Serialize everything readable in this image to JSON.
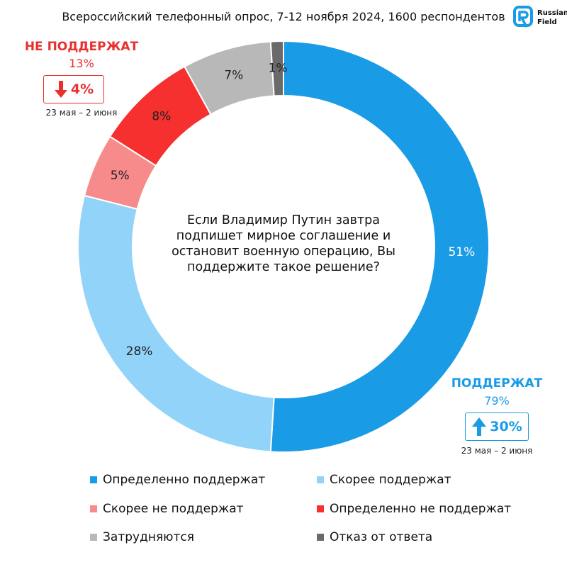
{
  "header": {
    "title": "Всероссийский телефонный опрос, 7-12 ноября 2024, 1600 респондентов",
    "logo_text": "Russian\nField"
  },
  "chart_data": {
    "type": "pie",
    "donut": true,
    "question": "Если Владимир Путин завтра подпишет мирное соглашение и остановит военную операцию, Вы поддержите такое решение?",
    "slices": [
      {
        "label": "Определенно поддержат",
        "value": 51,
        "display": "51%",
        "color": "#1a9be6"
      },
      {
        "label": "Скорее поддержат",
        "value": 28,
        "display": "28%",
        "color": "#91d3f9"
      },
      {
        "label": "Скорее не поддержат",
        "value": 5,
        "display": "5%",
        "color": "#f78a8a"
      },
      {
        "label": "Определенно не поддержат",
        "value": 8,
        "display": "8%",
        "color": "#f5302f"
      },
      {
        "label": "Затрудняются",
        "value": 7,
        "display": "7%",
        "color": "#b8b8b8"
      },
      {
        "label": "Отказ от ответа",
        "value": 1,
        "display": "1%",
        "color": "#6a6a6a"
      }
    ],
    "legend_position": "bottom"
  },
  "callouts": {
    "oppose": {
      "head": "НЕ ПОДДЕРЖАТ",
      "pct": "13%",
      "change": "4%",
      "direction": "down",
      "period": "23 мая – 2 июня",
      "color": "#e8302f"
    },
    "support": {
      "head": "ПОДДЕРЖАТ",
      "pct": "79%",
      "change": "30%",
      "direction": "up",
      "period": "23 мая – 2 июня",
      "color": "#1a9be6"
    }
  }
}
